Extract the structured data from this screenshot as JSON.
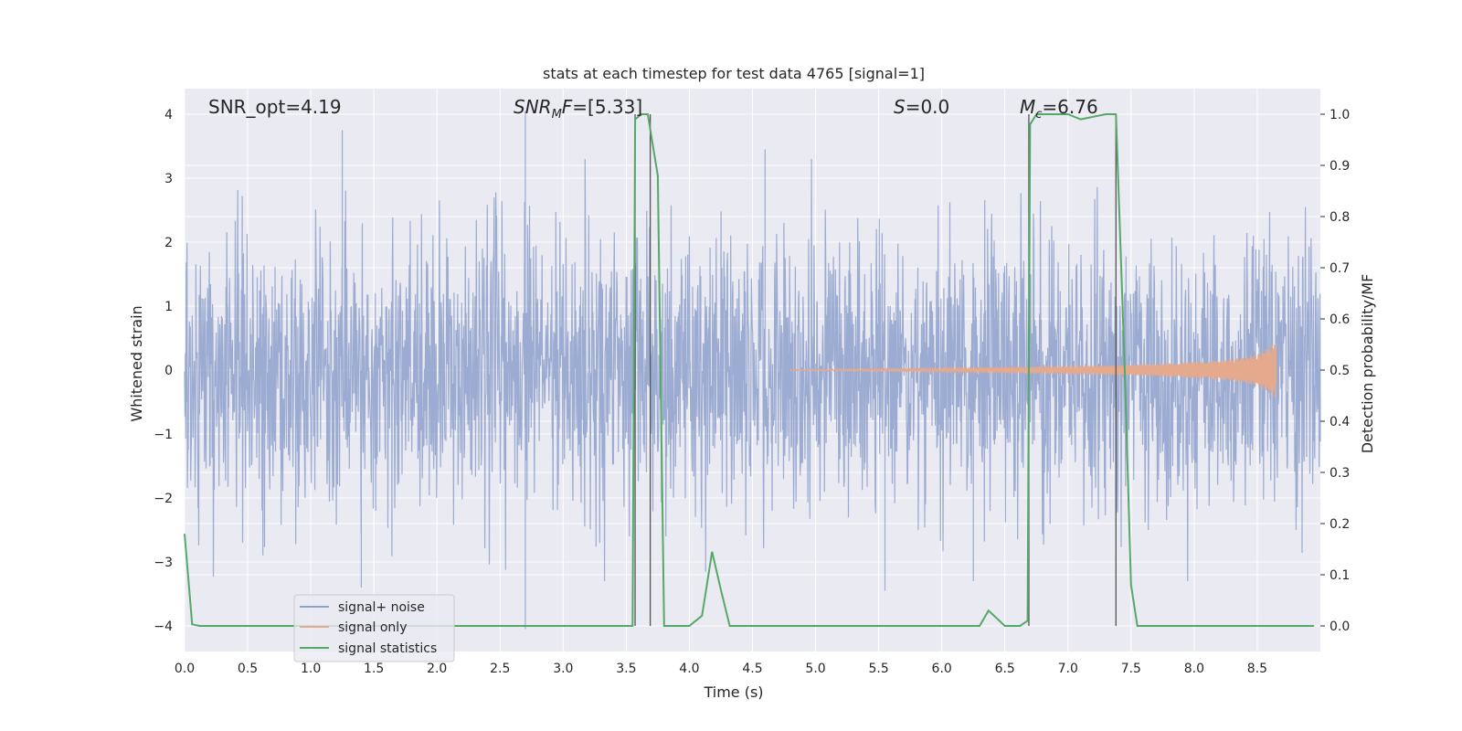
{
  "chart_data": {
    "type": "line",
    "title": "stats at each timestep for test data 4765 [signal=1]",
    "xlabel": "Time (s)",
    "ylabel": "Whitened strain",
    "ylabel_right": "Detection probability/MF",
    "xlim": [
      0.0,
      9.0
    ],
    "ylim": [
      -4.4,
      4.4
    ],
    "ylim_right": [
      -0.05,
      1.05
    ],
    "x_ticks": [
      "0.0",
      "0.5",
      "1.0",
      "1.5",
      "2.0",
      "2.5",
      "3.0",
      "3.5",
      "4.0",
      "4.5",
      "5.0",
      "5.5",
      "6.0",
      "6.5",
      "7.0",
      "7.5",
      "8.0",
      "8.5"
    ],
    "y_ticks": [
      "4",
      "3",
      "2",
      "1",
      "0",
      "−1",
      "−2",
      "−3",
      "−4"
    ],
    "y_ticks_right": [
      "1.0",
      "0.9",
      "0.8",
      "0.7",
      "0.6",
      "0.5",
      "0.4",
      "0.3",
      "0.2",
      "0.1",
      "0.0"
    ],
    "grid": true,
    "annotations": {
      "snr_opt": "SNR_opt=4.19",
      "snr_mf": "[5.33]",
      "snr_mf_prefix": "SNR",
      "snr_mf_sub": "M",
      "snr_mf_f": "F=",
      "s_label": "S",
      "s_value": "=0.0",
      "mc_label": "M",
      "mc_sub": "c",
      "mc_value": "=6.76"
    },
    "series": [
      {
        "name": "signal+ noise",
        "color": "#8da0cb",
        "description": "whitened noisy strain, roughly N(0,1) noise across 0-9 s, peaks to about ±3.7",
        "peaks": [
          {
            "x": 1.25,
            "y": 3.75
          },
          {
            "x": 2.7,
            "y": 4.05
          },
          {
            "x": 4.6,
            "y": 3.45
          },
          {
            "x": 1.4,
            "y": -3.4
          },
          {
            "x": 2.7,
            "y": -4.05
          },
          {
            "x": 5.55,
            "y": -3.45
          },
          {
            "x": 6.25,
            "y": -3.3
          }
        ]
      },
      {
        "name": "signal only",
        "color": "#e5a98e",
        "description": "chirp signal growing in amplitude from about 4.8 s to merger near 8.65 s",
        "envelope": {
          "x": [
            4.8,
            6.0,
            7.0,
            7.5,
            8.0,
            8.3,
            8.5,
            8.6,
            8.65
          ],
          "amplitude": [
            0.01,
            0.03,
            0.06,
            0.08,
            0.12,
            0.17,
            0.25,
            0.37,
            0.45
          ]
        }
      },
      {
        "name": "signal statistics",
        "color": "#55a868",
        "x": [
          0.0,
          0.06,
          0.12,
          0.5,
          1.0,
          2.0,
          3.0,
          3.55,
          3.57,
          3.62,
          3.67,
          3.75,
          3.8,
          4.0,
          4.1,
          4.18,
          4.25,
          4.32,
          4.4,
          5.0,
          6.0,
          6.3,
          6.37,
          6.5,
          6.62,
          6.68,
          6.7,
          6.75,
          6.8,
          7.0,
          7.1,
          7.3,
          7.38,
          7.45,
          7.5,
          7.55,
          8.0,
          8.95
        ],
        "values": [
          0.18,
          0.003,
          0.0,
          0.0,
          0.0,
          0.0,
          0.0,
          0.0,
          0.99,
          1.0,
          1.0,
          0.88,
          0.0,
          0.0,
          0.02,
          0.145,
          0.07,
          0.0,
          0.0,
          0.0,
          0.0,
          0.0,
          0.03,
          0.0,
          0.0,
          0.01,
          0.98,
          1.0,
          1.0,
          1.0,
          0.99,
          1.0,
          1.0,
          0.5,
          0.08,
          0.0,
          0.0,
          0.0
        ]
      }
    ],
    "vlines": [
      {
        "name": "matched-filter window start",
        "x": 3.57
      },
      {
        "name": "matched-filter window end",
        "x": 3.69
      },
      {
        "name": "detection window start",
        "x": 6.69
      },
      {
        "name": "detection window end",
        "x": 7.38
      }
    ],
    "legend": {
      "position": "lower-left",
      "items": [
        "signal+ noise",
        "signal only",
        "signal statistics"
      ]
    }
  }
}
